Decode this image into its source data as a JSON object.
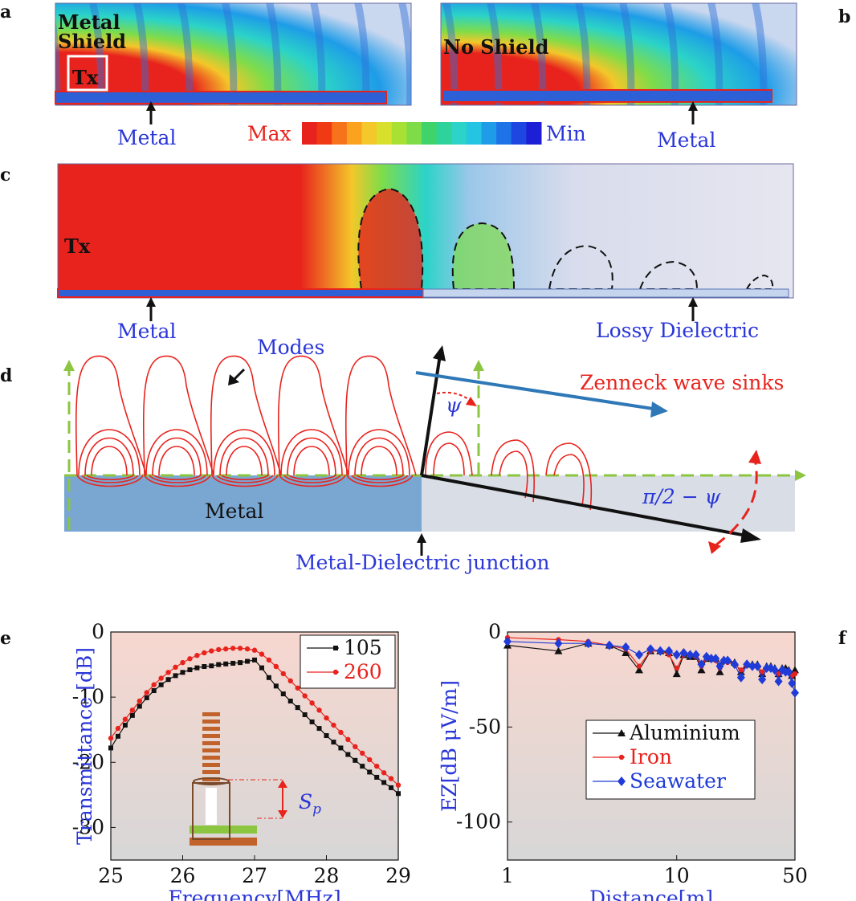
{
  "panels": {
    "a": "a",
    "b": "b",
    "c": "c",
    "d": "d",
    "e": "e",
    "f": "f"
  },
  "panel_a": {
    "left_label": "Metal Shield",
    "left_label_line1": "Metal",
    "left_label_line2": "Shield",
    "tx": "Tx",
    "right_label": "No Shield",
    "metal_left": "Metal",
    "metal_right": "Metal",
    "scale_max": "Max",
    "scale_min": "Min",
    "scale_colors": [
      "#e8231d",
      "#f03a14",
      "#f7731b",
      "#fba21e",
      "#f4c72a",
      "#d8e02c",
      "#a8e033",
      "#7fdc49",
      "#3fd36a",
      "#2ed39c",
      "#2bd3c8",
      "#24c4e3",
      "#1e9ce8",
      "#1e73e6",
      "#1d47e0",
      "#1c1fd6"
    ]
  },
  "panel_c": {
    "tx": "Tx",
    "metal": "Metal",
    "dielectric": "Lossy Dielectric"
  },
  "panel_d": {
    "modes": "Modes",
    "zenneck": "Zenneck wave sinks",
    "psi": "ψ",
    "angle": "π/2 − ψ",
    "metal": "Metal",
    "junction": "Metal-Dielectric junction"
  },
  "colors": {
    "red": "#e8231d",
    "blue_text": "#2a36d8",
    "metal_fill": "#7aa7d2",
    "dielectric_fill": "#d9dde6",
    "green_dash": "#8cc540",
    "arrow_blue": "#2f78b7"
  },
  "chart_data": [
    {
      "type": "line",
      "panel": "e",
      "xlabel": "Frequency[MHz]",
      "ylabel": "Transmittance [dB]",
      "xlim": [
        25,
        29
      ],
      "ylim": [
        -35,
        0
      ],
      "xticks": [
        "25",
        "26",
        "27",
        "28",
        "29"
      ],
      "yticks": [
        "0",
        "-10",
        "-20",
        "-30"
      ],
      "legend_position": "top-right",
      "inset_label": "Sp",
      "series": [
        {
          "name": "105",
          "color": "#111111",
          "marker": "square",
          "x": [
            25.0,
            25.1,
            25.2,
            25.3,
            25.4,
            25.5,
            25.6,
            25.7,
            25.8,
            25.9,
            26.0,
            26.1,
            26.2,
            26.3,
            26.4,
            26.5,
            26.6,
            26.7,
            26.8,
            26.9,
            27.0,
            27.1,
            27.2,
            27.3,
            27.4,
            27.5,
            27.6,
            27.7,
            27.8,
            27.9,
            28.0,
            28.1,
            28.2,
            28.3,
            28.4,
            28.5,
            28.6,
            28.7,
            28.8,
            28.9,
            29.0
          ],
          "y": [
            -17.8,
            -16.0,
            -14.3,
            -12.8,
            -11.4,
            -10.1,
            -9.0,
            -8.1,
            -7.3,
            -6.7,
            -6.2,
            -5.8,
            -5.5,
            -5.3,
            -5.2,
            -5.0,
            -4.9,
            -4.8,
            -4.7,
            -4.5,
            -4.3,
            -5.5,
            -7.0,
            -8.3,
            -9.5,
            -10.6,
            -11.6,
            -12.7,
            -13.8,
            -14.8,
            -15.9,
            -16.9,
            -17.8,
            -18.8,
            -19.7,
            -20.6,
            -21.5,
            -22.3,
            -23.1,
            -23.9,
            -24.8
          ]
        },
        {
          "name": "260",
          "color": "#e8231d",
          "marker": "circle",
          "x": [
            25.0,
            25.1,
            25.2,
            25.3,
            25.4,
            25.5,
            25.6,
            25.7,
            25.8,
            25.9,
            26.0,
            26.1,
            26.2,
            26.3,
            26.4,
            26.5,
            26.6,
            26.7,
            26.8,
            26.9,
            27.0,
            27.1,
            27.2,
            27.3,
            27.4,
            27.5,
            27.6,
            27.7,
            27.8,
            27.9,
            28.0,
            28.1,
            28.2,
            28.3,
            28.4,
            28.5,
            28.6,
            28.7,
            28.8,
            28.9,
            29.0
          ],
          "y": [
            -16.3,
            -14.8,
            -13.4,
            -12.0,
            -10.6,
            -9.3,
            -8.1,
            -7.1,
            -6.2,
            -5.4,
            -4.7,
            -4.1,
            -3.6,
            -3.2,
            -2.9,
            -2.7,
            -2.6,
            -2.5,
            -2.5,
            -2.6,
            -2.8,
            -3.4,
            -4.3,
            -5.3,
            -6.4,
            -7.5,
            -8.6,
            -9.8,
            -10.9,
            -12.0,
            -13.2,
            -14.3,
            -15.4,
            -16.5,
            -17.6,
            -18.6,
            -19.6,
            -20.6,
            -21.6,
            -22.5,
            -23.5
          ]
        }
      ]
    },
    {
      "type": "line",
      "panel": "f",
      "xlabel": "Distance[m]",
      "ylabel": "EZ[dB μV/m]",
      "xscale": "log",
      "xlim": [
        1,
        50
      ],
      "ylim": [
        -120,
        0
      ],
      "xticks": [
        "1",
        "10",
        "50"
      ],
      "yticks": [
        "0",
        "-50",
        "-100"
      ],
      "legend_position": "center",
      "series": [
        {
          "name": "Aluminium",
          "color": "#111111",
          "marker": "triangle",
          "x": [
            1,
            2,
            3,
            4,
            5,
            6,
            7,
            8,
            9,
            10,
            11,
            12,
            13,
            14,
            15,
            16,
            17,
            18,
            19,
            20,
            22,
            24,
            26,
            28,
            30,
            32,
            34,
            36,
            38,
            40,
            42,
            44,
            46,
            48,
            50
          ],
          "y": [
            -7,
            -10,
            -6,
            -7,
            -11,
            -20,
            -10,
            -10,
            -11,
            -22,
            -12,
            -13,
            -13,
            -20,
            -14,
            -14,
            -14,
            -21,
            -15,
            -15,
            -16,
            -21,
            -17,
            -17,
            -17,
            -22,
            -18,
            -18,
            -19,
            -22,
            -19,
            -19,
            -20,
            -23,
            -20
          ]
        },
        {
          "name": "Iron",
          "color": "#e8231d",
          "marker": "circle",
          "x": [
            1,
            2,
            3,
            4,
            5,
            6,
            7,
            8,
            9,
            10,
            11,
            12,
            13,
            14,
            15,
            16,
            17,
            18,
            19,
            20,
            22,
            24,
            26,
            28,
            30,
            32,
            34,
            36,
            38,
            40,
            42,
            44,
            46,
            48,
            50
          ],
          "y": [
            -3,
            -4,
            -5,
            -7,
            -9,
            -18,
            -10,
            -10,
            -12,
            -19,
            -12,
            -12,
            -13,
            -18,
            -14,
            -14,
            -15,
            -19,
            -15,
            -16,
            -17,
            -20,
            -17,
            -18,
            -18,
            -21,
            -19,
            -19,
            -20,
            -22,
            -20,
            -21,
            -21,
            -23,
            -22
          ]
        },
        {
          "name": "Seawater",
          "color": "#1f3bd8",
          "marker": "diamond",
          "x": [
            1,
            2,
            3,
            4,
            5,
            6,
            7,
            8,
            9,
            10,
            11,
            12,
            13,
            14,
            15,
            16,
            17,
            18,
            19,
            20,
            22,
            24,
            26,
            28,
            30,
            32,
            34,
            36,
            38,
            40,
            42,
            44,
            46,
            48,
            50
          ],
          "y": [
            -5,
            -6,
            -6,
            -7,
            -8,
            -12,
            -9,
            -10,
            -10,
            -12,
            -11,
            -12,
            -12,
            -17,
            -13,
            -14,
            -14,
            -18,
            -15,
            -15,
            -17,
            -24,
            -17,
            -18,
            -18,
            -25,
            -19,
            -19,
            -20,
            -26,
            -20,
            -21,
            -21,
            -27,
            -32
          ]
        }
      ]
    }
  ]
}
